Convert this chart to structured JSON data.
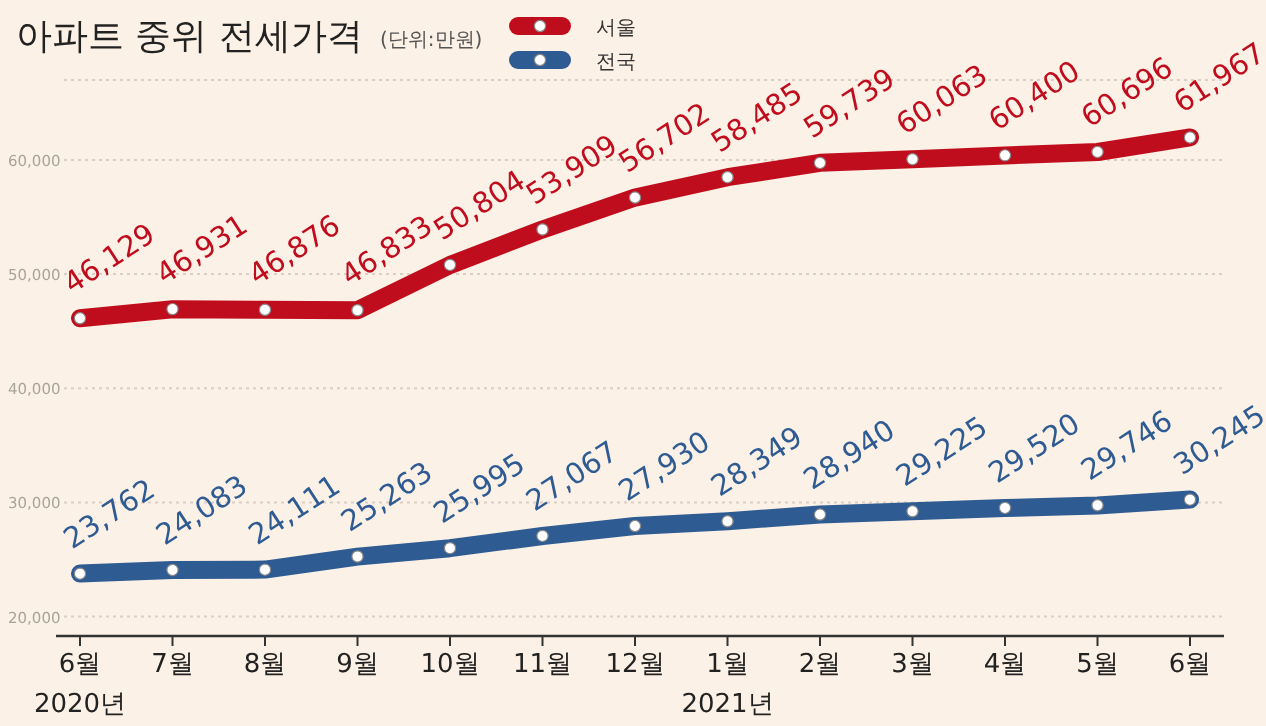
{
  "chart_data": {
    "type": "line",
    "title": "아파트 중위 전세가격",
    "subtitle": "(단위:만원)",
    "categories": [
      "6월\n2020년",
      "7월",
      "8월",
      "9월",
      "10월",
      "11월",
      "12월",
      "1월\n2021년",
      "2월",
      "3월",
      "4월",
      "5월",
      "6월"
    ],
    "series": [
      {
        "name": "서울",
        "color": "#c00d1e",
        "values": [
          46129,
          46931,
          46876,
          46833,
          50804,
          53909,
          56702,
          58485,
          59739,
          60063,
          60400,
          60696,
          61967
        ],
        "value_labels": [
          "46,129",
          "46,931",
          "46,876",
          "46,833",
          "50,804",
          "53,909",
          "56,702",
          "58,485",
          "59,739",
          "60,063",
          "60,400",
          "60,696",
          "61,967"
        ]
      },
      {
        "name": "전국",
        "color": "#2f5b93",
        "values": [
          23762,
          24083,
          24111,
          25263,
          25995,
          27067,
          27930,
          28349,
          28940,
          29225,
          29520,
          29746,
          30245
        ],
        "value_labels": [
          "23,762",
          "24,083",
          "24,111",
          "25,263",
          "25,995",
          "27,067",
          "27,930",
          "28,349",
          "28,940",
          "29,225",
          "29,520",
          "29,746",
          "30,245"
        ]
      }
    ],
    "ylim": [
      18300,
      67000
    ],
    "yticks": [
      {
        "value": 20000,
        "label": "20,000"
      },
      {
        "value": 30000,
        "label": "30,000"
      },
      {
        "value": 40000,
        "label": "40,000"
      },
      {
        "value": 50000,
        "label": "50,000"
      },
      {
        "value": 60000,
        "label": "60,000"
      }
    ],
    "grid": "y",
    "legend": "top",
    "marker": "circle",
    "line_style": "solid"
  }
}
